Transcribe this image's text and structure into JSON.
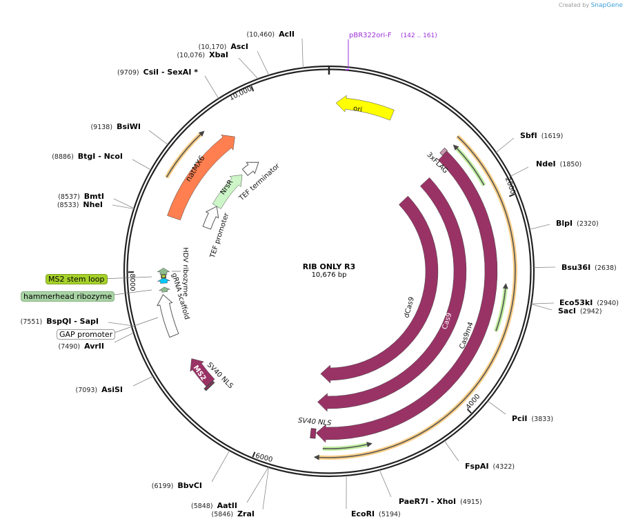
{
  "credit": {
    "prefix": "Created by",
    "brand": "SnapGene"
  },
  "plasmid": {
    "name": "RIB ONLY R3",
    "length_label": "10,676 bp",
    "length_bp": 10676
  },
  "ticks": [
    {
      "bp": 2000,
      "label": "2000"
    },
    {
      "bp": 4000,
      "label": "4000"
    },
    {
      "bp": 6000,
      "label": "6000"
    },
    {
      "bp": 8000,
      "label": "8000"
    },
    {
      "bp": 10000,
      "label": "10,000"
    }
  ],
  "primer": {
    "name": "pBR322ori-F",
    "range": "(142 .. 161)",
    "bp": 152,
    "color": "#9b30d9"
  },
  "enzymes": [
    {
      "name": "AclI",
      "pos": "(10,460)",
      "bp": 10460,
      "side": "left"
    },
    {
      "name": "AscI",
      "pos": "(10,170)",
      "bp": 10170,
      "side": "left"
    },
    {
      "name": "XbaI",
      "pos": "(10,076)",
      "bp": 10076,
      "side": "left"
    },
    {
      "name": "CsiI  - SexAI *",
      "pos": "(9709)",
      "bp": 9709,
      "side": "left"
    },
    {
      "name": "BsiWI",
      "pos": "(9138)",
      "bp": 9138,
      "side": "left"
    },
    {
      "name": "BtgI  - NcoI",
      "pos": "(8886)",
      "bp": 8886,
      "side": "left"
    },
    {
      "name": "BmtI",
      "pos": "(8537)",
      "bp": 8537,
      "side": "left"
    },
    {
      "name": "NheI",
      "pos": "(8533)",
      "bp": 8533,
      "side": "left"
    },
    {
      "name": "BspQI  - SapI",
      "pos": "(7551)",
      "bp": 7551,
      "side": "left"
    },
    {
      "name": "AvrII",
      "pos": "(7490)",
      "bp": 7490,
      "side": "left"
    },
    {
      "name": "AsiSI",
      "pos": "(7093)",
      "bp": 7093,
      "side": "left"
    },
    {
      "name": "BbvCI",
      "pos": "(6199)",
      "bp": 6199,
      "side": "left"
    },
    {
      "name": "AatII",
      "pos": "(5848)",
      "bp": 5848,
      "side": "left"
    },
    {
      "name": "ZraI",
      "pos": "(5846)",
      "bp": 5846,
      "side": "left"
    },
    {
      "name": "EcoRI",
      "pos": "(5194)",
      "bp": 5194,
      "side": "right"
    },
    {
      "name": "PaeR7I  - XhoI",
      "pos": "(4915)",
      "bp": 4915,
      "side": "right"
    },
    {
      "name": "FspAI",
      "pos": "(4322)",
      "bp": 4322,
      "side": "right"
    },
    {
      "name": "PciI",
      "pos": "(3833)",
      "bp": 3833,
      "side": "right"
    },
    {
      "name": "Eco53kI",
      "pos": "(2940)",
      "bp": 2940,
      "side": "right"
    },
    {
      "name": "SacI",
      "pos": "(2942)",
      "bp": 2942,
      "side": "right"
    },
    {
      "name": "Bsu36I",
      "pos": "(2638)",
      "bp": 2638,
      "side": "right"
    },
    {
      "name": "BlpI",
      "pos": "(2320)",
      "bp": 2320,
      "side": "right"
    },
    {
      "name": "NdeI",
      "pos": "(1850)",
      "bp": 1850,
      "side": "right"
    },
    {
      "name": "SbfI",
      "pos": "(1619)",
      "bp": 1619,
      "side": "right"
    }
  ],
  "features": [
    {
      "id": "ori",
      "name": "ori",
      "start": 71,
      "end": 653,
      "dir": -1,
      "color": "#ffff00"
    },
    {
      "id": "orange-cds",
      "start": 1293,
      "end": 5478,
      "dir": 1,
      "color": "#f5a623"
    },
    {
      "id": "green-1",
      "start": 1317,
      "end": 1809,
      "dir": -1,
      "color": "#8be04e"
    },
    {
      "id": "green-2",
      "start": 2782,
      "end": 3254,
      "dir": -1,
      "color": "#8be04e"
    },
    {
      "id": "green-3",
      "start": 4918,
      "end": 5398,
      "dir": -1,
      "color": "#8be04e"
    },
    {
      "id": "cas9m4",
      "name": "Cas9m4",
      "start": 1320,
      "end": 5474,
      "dir": 1,
      "color": "#993366"
    },
    {
      "id": "cas9",
      "name": "Cas9",
      "start": 1394,
      "end": 5486,
      "dir": 1,
      "color": "#993366"
    },
    {
      "id": "dcas9",
      "name": "dCas9",
      "start": 1376,
      "end": 5477,
      "dir": 1,
      "color": "#993366"
    },
    {
      "id": "flag",
      "name": "3xFLAG",
      "start": 1280,
      "end": 1318,
      "dir": 0,
      "color": "#cc99b2"
    },
    {
      "id": "sv40",
      "name": "SV40 NLS",
      "start": 5478,
      "end": 5530,
      "dir": 0,
      "color": "#993366"
    },
    {
      "id": "ms2",
      "name": "MS2",
      "start": 6723,
      "end": 7046,
      "dir": 1,
      "color": "#993366"
    },
    {
      "id": "ms2-nls",
      "name": "SV40 NLS",
      "start": 6700,
      "end": 6723,
      "dir": 0,
      "color": "#993366"
    },
    {
      "id": "gap",
      "name": "GAP promoter",
      "start": 7340,
      "end": 7770,
      "dir": 1,
      "color": "#ffffff"
    },
    {
      "id": "hh",
      "name": "hammerhead ribozyme",
      "start": 7795,
      "end": 7845,
      "dir": 1,
      "color": "#8fbc8f"
    },
    {
      "id": "ms2sl",
      "name": "MS2 stem loop",
      "start": 7885,
      "end": 7940,
      "dir": 1,
      "color": "#00c8ff"
    },
    {
      "id": "grna",
      "name": "gRNA scaffold",
      "start": 7940,
      "end": 7975,
      "dir": 0,
      "color": "#b4d435"
    },
    {
      "id": "hdv",
      "name": "HDV ribozyme",
      "start": 7975,
      "end": 8040,
      "dir": 1,
      "color": "#8fbc8f"
    },
    {
      "id": "tefp",
      "name": "TEF promoter",
      "start": 8588,
      "end": 8897,
      "dir": 1,
      "color": "#ffffff"
    },
    {
      "id": "nrsr",
      "name": "NrsR",
      "start": 8897,
      "end": 9430,
      "dir": 1,
      "color": "#ccf5c8"
    },
    {
      "id": "teft",
      "name": "TEF terminator",
      "start": 9480,
      "end": 9700,
      "dir": 1,
      "color": "#ffffff"
    },
    {
      "id": "natmx6",
      "name": "natMX6",
      "start": 8570,
      "end": 9638,
      "dir": 1,
      "color": "#ff7f50"
    },
    {
      "id": "orange-nat",
      "start": 8897,
      "end": 9443,
      "dir": 1,
      "color": "#f5a623"
    }
  ],
  "boxed_labels": {
    "ms2_stem_loop": {
      "text": "MS2 stem loop",
      "color": "#a6d12a"
    },
    "hammerhead": {
      "text": "hammerhead ribozyme",
      "color": "#a9d4a5"
    },
    "gap": {
      "text": "GAP promoter",
      "color": "#ffffff"
    }
  }
}
